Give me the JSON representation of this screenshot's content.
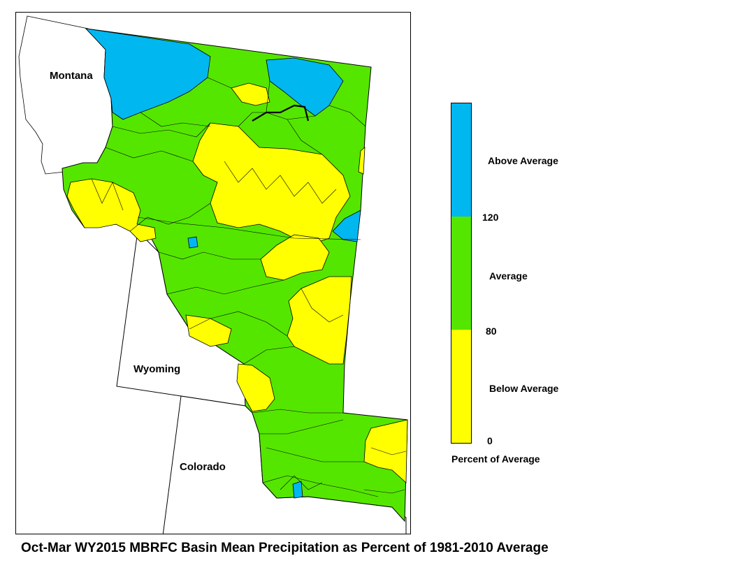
{
  "caption": "Oct-Mar WY2015 MBRFC Basin Mean Precipitation as Percent of 1981-2010 Average",
  "states": {
    "montana": "Montana",
    "wyoming": "Wyoming",
    "colorado": "Colorado"
  },
  "legend": {
    "title": "Percent of Average",
    "categories": [
      {
        "label": "Above Average",
        "color": "#00b7ef"
      },
      {
        "label": "Average",
        "color": "#55e600"
      },
      {
        "label": "Below Average",
        "color": "#ffff00"
      }
    ],
    "ticks": [
      "120",
      "80",
      "0"
    ]
  },
  "colors": {
    "above": "#00b7ef",
    "average": "#55e600",
    "below": "#ffff00",
    "boundary": "#000000",
    "background": "#ffffff"
  }
}
